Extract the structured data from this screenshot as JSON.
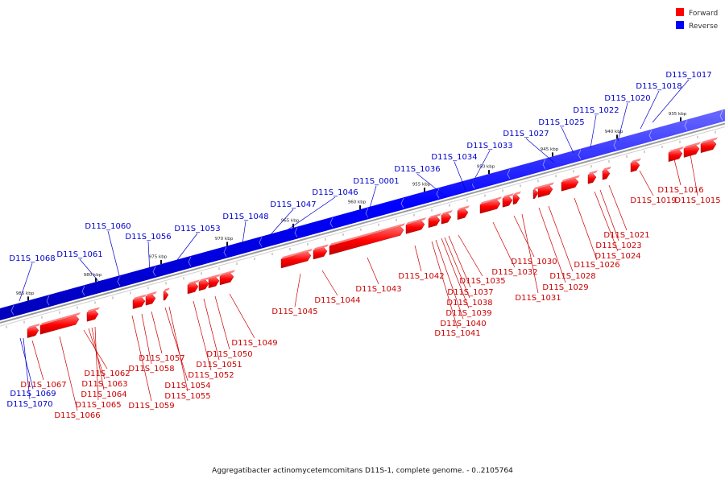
{
  "caption": "Aggregatibacter actinomycetemcomitans D11S-1, complete genome. - 0..2105764",
  "legend": [
    {
      "label": "Forward",
      "color": "#ff0000"
    },
    {
      "label": "Reverse",
      "color": "#0000ff"
    }
  ],
  "colors": {
    "forward": "#ff0000",
    "reverse": "#0000ff"
  },
  "kbp_ticks": [
    "985 kbp",
    "980 kbp",
    "975 kbp",
    "970 kbp",
    "965 kbp",
    "960 kbp",
    "955 kbp",
    "950 kbp",
    "945 kbp",
    "940 kbp",
    "935 kbp"
  ],
  "reverse_genes": [
    "D11S_1068",
    "D11S_1061",
    "D11S_1060",
    "D11S_1056",
    "D11S_1053",
    "D11S_1048",
    "D11S_1047",
    "D11S_1046",
    "D11S_0001",
    "D11S_1036",
    "D11S_1034",
    "D11S_1033",
    "D11S_1027",
    "D11S_1025",
    "D11S_1022",
    "D11S_1020",
    "D11S_1018",
    "D11S_1017",
    "D11S_1069",
    "D11S_1070"
  ],
  "forward_genes": [
    "D11S_1067",
    "D11S_1066",
    "D11S_1062",
    "D11S_1063",
    "D11S_1064",
    "D11S_1065",
    "D11S_1059",
    "D11S_1058",
    "D11S_1057",
    "D11S_1054",
    "D11S_1055",
    "D11S_1052",
    "D11S_1051",
    "D11S_1050",
    "D11S_1049",
    "D11S_1045",
    "D11S_1044",
    "D11S_1043",
    "D11S_1042",
    "D11S_1035",
    "D11S_1037",
    "D11S_1038",
    "D11S_1039",
    "D11S_1040",
    "D11S_1041",
    "D11S_1032",
    "D11S_1031",
    "D11S_1030",
    "D11S_1029",
    "D11S_1028",
    "D11S_1026",
    "D11S_1024",
    "D11S_1023",
    "D11S_1021",
    "D11S_1019",
    "D11S_1016",
    "D11S_1015"
  ]
}
